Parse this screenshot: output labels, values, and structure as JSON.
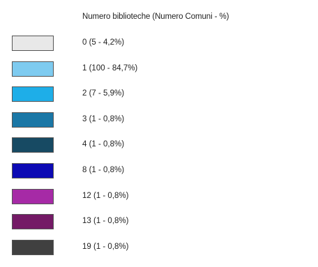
{
  "chart_data": {
    "type": "legend",
    "title": "Numero biblioteche (Numero Comuni - %)",
    "entries": [
      {
        "label": "0 (5 - 4,2%)",
        "biblioteche": 0,
        "comuni": 5,
        "percent": 4.2,
        "color": "#e8e8e8"
      },
      {
        "label": "1 (100 - 84,7%)",
        "biblioteche": 1,
        "comuni": 100,
        "percent": 84.7,
        "color": "#7ecbf0"
      },
      {
        "label": "2 (7 - 5,9%)",
        "biblioteche": 2,
        "comuni": 7,
        "percent": 5.9,
        "color": "#1eaee8"
      },
      {
        "label": "3 (1 - 0,8%)",
        "biblioteche": 3,
        "comuni": 1,
        "percent": 0.8,
        "color": "#1a77a6"
      },
      {
        "label": "4 (1 - 0,8%)",
        "biblioteche": 4,
        "comuni": 1,
        "percent": 0.8,
        "color": "#174a63"
      },
      {
        "label": "8 (1 - 0,8%)",
        "biblioteche": 8,
        "comuni": 1,
        "percent": 0.8,
        "color": "#0c0ab4"
      },
      {
        "label": "12 (1 - 0,8%)",
        "biblioteche": 12,
        "comuni": 1,
        "percent": 0.8,
        "color": "#a62aa6"
      },
      {
        "label": "13 (1 - 0,8%)",
        "biblioteche": 13,
        "comuni": 1,
        "percent": 0.8,
        "color": "#741a66"
      },
      {
        "label": "19 (1 - 0,8%)",
        "biblioteche": 19,
        "comuni": 1,
        "percent": 0.8,
        "color": "#404040"
      }
    ]
  }
}
